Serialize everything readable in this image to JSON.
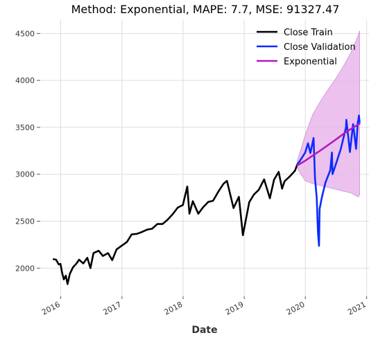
{
  "chart_data": {
    "type": "line",
    "title": "Method: Exponential, MAPE: 7.7, MSE: 91327.47",
    "xlabel": "Date",
    "ylabel": "",
    "xlim": [
      "2015-09-01",
      "2021-01-15"
    ],
    "ylim": [
      1700,
      4650
    ],
    "x_ticks": [
      "2016",
      "2017",
      "2018",
      "2019",
      "2020",
      "2021"
    ],
    "y_ticks": [
      2000,
      2500,
      3000,
      3500,
      4000,
      4500
    ],
    "grid": true,
    "legend_position": "top-right",
    "series": [
      {
        "name": "Close Train",
        "color": "#000000",
        "points": [
          [
            "2015-11-20",
            2095
          ],
          [
            "2015-12-05",
            2090
          ],
          [
            "2015-12-20",
            2040
          ],
          [
            "2015-12-31",
            2045
          ],
          [
            "2016-01-10",
            1950
          ],
          [
            "2016-01-20",
            1880
          ],
          [
            "2016-02-01",
            1920
          ],
          [
            "2016-02-11",
            1830
          ],
          [
            "2016-02-25",
            1940
          ],
          [
            "2016-03-15",
            2010
          ],
          [
            "2016-04-05",
            2050
          ],
          [
            "2016-04-20",
            2090
          ],
          [
            "2016-05-15",
            2050
          ],
          [
            "2016-06-08",
            2110
          ],
          [
            "2016-06-27",
            2000
          ],
          [
            "2016-07-15",
            2160
          ],
          [
            "2016-08-15",
            2185
          ],
          [
            "2016-09-09",
            2130
          ],
          [
            "2016-10-10",
            2160
          ],
          [
            "2016-11-04",
            2085
          ],
          [
            "2016-11-30",
            2200
          ],
          [
            "2016-12-31",
            2240
          ],
          [
            "2017-01-31",
            2280
          ],
          [
            "2017-02-28",
            2360
          ],
          [
            "2017-03-31",
            2365
          ],
          [
            "2017-04-30",
            2385
          ],
          [
            "2017-05-31",
            2410
          ],
          [
            "2017-06-30",
            2420
          ],
          [
            "2017-07-31",
            2470
          ],
          [
            "2017-08-31",
            2470
          ],
          [
            "2017-09-30",
            2515
          ],
          [
            "2017-10-31",
            2575
          ],
          [
            "2017-11-30",
            2645
          ],
          [
            "2017-12-31",
            2673
          ],
          [
            "2018-01-26",
            2870
          ],
          [
            "2018-02-08",
            2580
          ],
          [
            "2018-02-28",
            2713
          ],
          [
            "2018-04-02",
            2580
          ],
          [
            "2018-04-30",
            2648
          ],
          [
            "2018-05-31",
            2705
          ],
          [
            "2018-06-29",
            2718
          ],
          [
            "2018-07-31",
            2816
          ],
          [
            "2018-08-31",
            2901
          ],
          [
            "2018-09-20",
            2930
          ],
          [
            "2018-10-29",
            2640
          ],
          [
            "2018-11-30",
            2760
          ],
          [
            "2018-12-24",
            2351
          ],
          [
            "2019-01-31",
            2704
          ],
          [
            "2019-02-28",
            2784
          ],
          [
            "2019-03-29",
            2834
          ],
          [
            "2019-04-30",
            2946
          ],
          [
            "2019-06-03",
            2744
          ],
          [
            "2019-06-28",
            2942
          ],
          [
            "2019-07-26",
            3025
          ],
          [
            "2019-08-15",
            2847
          ],
          [
            "2019-08-30",
            2926
          ],
          [
            "2019-09-30",
            2977
          ],
          [
            "2019-10-31",
            3038
          ],
          [
            "2019-11-15",
            3110
          ]
        ]
      },
      {
        "name": "Close Validation",
        "color": "#0a2bff",
        "points": [
          [
            "2019-11-15",
            3110
          ],
          [
            "2019-11-29",
            3141
          ],
          [
            "2019-12-31",
            3231
          ],
          [
            "2020-01-17",
            3330
          ],
          [
            "2020-01-31",
            3226
          ],
          [
            "2020-02-19",
            3386
          ],
          [
            "2020-02-28",
            2954
          ],
          [
            "2020-03-09",
            2746
          ],
          [
            "2020-03-16",
            2386
          ],
          [
            "2020-03-23",
            2237
          ],
          [
            "2020-03-26",
            2630
          ],
          [
            "2020-04-08",
            2749
          ],
          [
            "2020-04-30",
            2912
          ],
          [
            "2020-05-29",
            3044
          ],
          [
            "2020-06-08",
            3232
          ],
          [
            "2020-06-11",
            3002
          ],
          [
            "2020-06-30",
            3100
          ],
          [
            "2020-07-31",
            3271
          ],
          [
            "2020-08-31",
            3500
          ],
          [
            "2020-09-02",
            3580
          ],
          [
            "2020-09-23",
            3237
          ],
          [
            "2020-10-12",
            3534
          ],
          [
            "2020-10-30",
            3270
          ],
          [
            "2020-11-09",
            3550
          ],
          [
            "2020-11-13",
            3585
          ],
          [
            "2020-11-16",
            3626
          ],
          [
            "2020-11-20",
            3557
          ]
        ]
      },
      {
        "name": "Exponential",
        "color": "#b31ab8",
        "points": [
          [
            "2019-11-15",
            3095
          ],
          [
            "2020-01-01",
            3145
          ],
          [
            "2020-02-15",
            3200
          ],
          [
            "2020-04-01",
            3255
          ],
          [
            "2020-05-15",
            3310
          ],
          [
            "2020-07-01",
            3370
          ],
          [
            "2020-08-15",
            3430
          ],
          [
            "2020-10-01",
            3485
          ],
          [
            "2020-11-20",
            3540
          ]
        ]
      }
    ],
    "confidence_band": {
      "series": "Exponential",
      "color": "#e9b6eb",
      "upper": [
        [
          "2019-11-15",
          3150
        ],
        [
          "2020-01-01",
          3420
        ],
        [
          "2020-02-15",
          3640
        ],
        [
          "2020-04-01",
          3780
        ],
        [
          "2020-05-15",
          3900
        ],
        [
          "2020-07-01",
          4020
        ],
        [
          "2020-08-15",
          4150
        ],
        [
          "2020-10-01",
          4300
        ],
        [
          "2020-11-12",
          4480
        ],
        [
          "2020-11-20",
          4530
        ]
      ],
      "lower": [
        [
          "2019-11-15",
          3060
        ],
        [
          "2020-01-01",
          2930
        ],
        [
          "2020-02-15",
          2900
        ],
        [
          "2020-04-01",
          2880
        ],
        [
          "2020-05-15",
          2860
        ],
        [
          "2020-07-01",
          2840
        ],
        [
          "2020-08-15",
          2820
        ],
        [
          "2020-10-01",
          2800
        ],
        [
          "2020-11-12",
          2760
        ],
        [
          "2020-11-20",
          2780
        ]
      ]
    }
  }
}
